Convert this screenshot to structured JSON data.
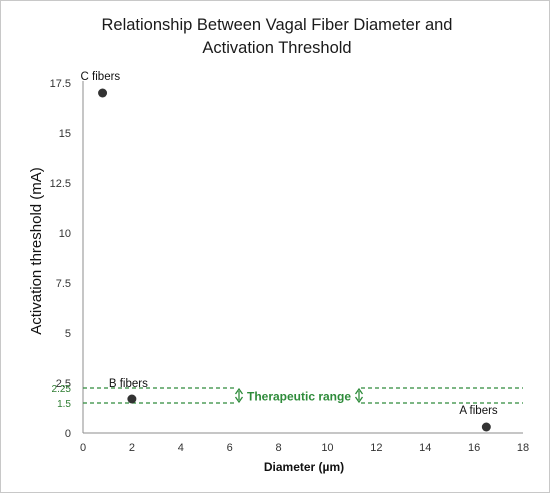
{
  "chart_data": {
    "type": "scatter",
    "title": [
      "Relationship Between Vagal Fiber Diameter and",
      "Activation Threshold"
    ],
    "xlabel": "Diameter (µm)",
    "ylabel": "Activation threshold (mA)",
    "xlim": [
      0,
      18
    ],
    "ylim": [
      0,
      17.5
    ],
    "x_ticks": [
      "0",
      "2",
      "4",
      "6",
      "8",
      "10",
      "12",
      "14",
      "16",
      "18"
    ],
    "y_ticks": [
      "0",
      "2.5",
      "5",
      "7.5",
      "10",
      "12.5",
      "15",
      "17.5"
    ],
    "grid": false,
    "points": [
      {
        "x": 0.8,
        "y": 17.0,
        "label": "C fibers"
      },
      {
        "x": 2.0,
        "y": 1.7,
        "label": "B fibers"
      },
      {
        "x": 16.5,
        "y": 0.3,
        "label": "A fibers"
      }
    ],
    "therapeutic_range": {
      "low": 1.5,
      "high": 2.25,
      "low_label": "1.5",
      "high_label": "2.25",
      "label": "Therapeutic range",
      "color": "#2e8b3a"
    },
    "marker_color": "#333333",
    "axis_color": "#8c8c8c"
  }
}
